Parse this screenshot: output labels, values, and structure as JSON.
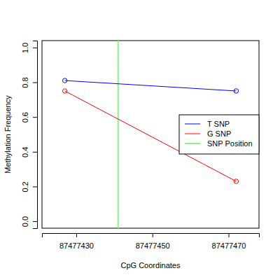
{
  "chart_data": {
    "type": "line",
    "x_label": "CpG Coordinates",
    "y_label": "Methylation Frequency",
    "xlim": [
      87477421,
      87477478
    ],
    "xticks": [
      87477430,
      87477450,
      87477470
    ],
    "ylim": [
      -0.04,
      1.04
    ],
    "yticks": [
      {
        "value": 0,
        "label": "0.0"
      },
      {
        "value": 0.2,
        "label": "0.2"
      },
      {
        "value": 0.4,
        "label": "0.4"
      },
      {
        "value": 0.6,
        "label": "0.6"
      },
      {
        "value": 0.8,
        "label": "0.8"
      },
      {
        "value": 1,
        "label": "1.0"
      }
    ],
    "legend": "right",
    "series": [
      {
        "name": "T SNP",
        "color": "#0000ff",
        "marker": "circle",
        "x": [
          87477427,
          87477472
        ],
        "values": [
          0.81,
          0.75
        ]
      },
      {
        "name": "G SNP",
        "color": "#ff0000",
        "marker": "circle",
        "x": [
          87477427,
          87477472
        ],
        "values": [
          0.75,
          0.23
        ]
      }
    ],
    "vlines": [
      {
        "name": "SNP Position",
        "color": "#90ee90",
        "x": 87477441
      }
    ]
  }
}
